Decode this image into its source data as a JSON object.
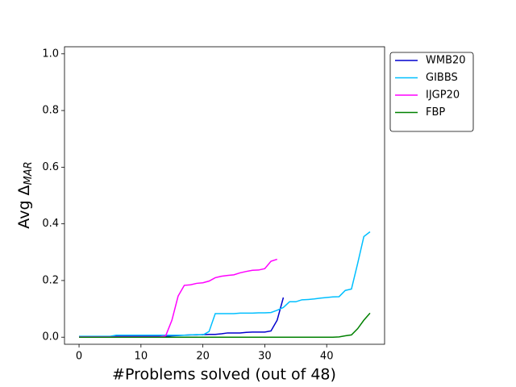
{
  "chart_data": {
    "type": "line",
    "xlabel": "#Problems solved (out of 48)",
    "ylabel": {
      "text": "Avg Δ",
      "subscript": "MAR"
    },
    "xlim": [
      -2.35,
      49.35
    ],
    "ylim": [
      -0.025,
      1.025
    ],
    "xticks": [
      0,
      10,
      20,
      30,
      40
    ],
    "yticks": [
      {
        "value": 0,
        "label": "0.0"
      },
      {
        "value": 0.2,
        "label": "0.2"
      },
      {
        "value": 0.4,
        "label": "0.4"
      },
      {
        "value": 0.6,
        "label": "0.6"
      },
      {
        "value": 0.8,
        "label": "0.8"
      },
      {
        "value": 1.0,
        "label": "1.0"
      }
    ],
    "grid": false,
    "legend": "outside-upper-right",
    "series": [
      {
        "name": "WMB20",
        "color": "#0000cd",
        "x": [
          0,
          1,
          2,
          3,
          4,
          5,
          6,
          7,
          8,
          9,
          10,
          11,
          12,
          13,
          14,
          15,
          16,
          17,
          18,
          19,
          20,
          21,
          22,
          23,
          24,
          25,
          26,
          27,
          28,
          29,
          30,
          31,
          32,
          33
        ],
        "values": [
          0.002,
          0.002,
          0.002,
          0.002,
          0.002,
          0.002,
          0.003,
          0.003,
          0.003,
          0.003,
          0.003,
          0.003,
          0.003,
          0.003,
          0.003,
          0.005,
          0.006,
          0.007,
          0.008,
          0.008,
          0.009,
          0.01,
          0.01,
          0.012,
          0.015,
          0.015,
          0.015,
          0.017,
          0.018,
          0.018,
          0.018,
          0.022,
          0.06,
          0.14
        ]
      },
      {
        "name": "GIBBS",
        "color": "#00bfff",
        "x": [
          0,
          1,
          2,
          3,
          4,
          5,
          6,
          7,
          8,
          9,
          10,
          11,
          12,
          13,
          14,
          15,
          16,
          17,
          18,
          19,
          20,
          21,
          22,
          23,
          24,
          25,
          26,
          27,
          28,
          29,
          30,
          31,
          32,
          33,
          34,
          35,
          36,
          37,
          38,
          39,
          40,
          41,
          42,
          43,
          44,
          45,
          46,
          47
        ],
        "values": [
          0.003,
          0.003,
          0.003,
          0.003,
          0.003,
          0.003,
          0.007,
          0.007,
          0.007,
          0.007,
          0.007,
          0.007,
          0.007,
          0.007,
          0.007,
          0.007,
          0.007,
          0.007,
          0.008,
          0.009,
          0.008,
          0.02,
          0.083,
          0.083,
          0.083,
          0.083,
          0.085,
          0.085,
          0.085,
          0.086,
          0.086,
          0.087,
          0.095,
          0.105,
          0.125,
          0.125,
          0.132,
          0.133,
          0.135,
          0.138,
          0.14,
          0.142,
          0.143,
          0.165,
          0.17,
          0.26,
          0.355,
          0.372
        ]
      },
      {
        "name": "IJGP20",
        "color": "#ff00ff",
        "x": [
          0,
          1,
          2,
          3,
          4,
          5,
          6,
          7,
          8,
          9,
          10,
          11,
          12,
          13,
          14,
          15,
          16,
          17,
          18,
          19,
          20,
          21,
          22,
          23,
          24,
          25,
          26,
          27,
          28,
          29,
          30,
          31,
          32
        ],
        "values": [
          0.001,
          0.001,
          0.001,
          0.001,
          0.001,
          0.001,
          0.001,
          0.001,
          0.001,
          0.001,
          0.001,
          0.001,
          0.001,
          0.001,
          0.005,
          0.06,
          0.145,
          0.183,
          0.185,
          0.19,
          0.192,
          0.198,
          0.21,
          0.215,
          0.218,
          0.22,
          0.227,
          0.232,
          0.236,
          0.237,
          0.242,
          0.268,
          0.275
        ]
      },
      {
        "name": "FBP",
        "color": "#008000",
        "x": [
          0,
          1,
          2,
          3,
          4,
          5,
          6,
          7,
          8,
          9,
          10,
          11,
          12,
          13,
          14,
          15,
          16,
          17,
          18,
          19,
          20,
          21,
          22,
          23,
          24,
          25,
          26,
          27,
          28,
          29,
          30,
          31,
          32,
          33,
          34,
          35,
          36,
          37,
          38,
          39,
          40,
          41,
          42,
          43,
          44,
          45,
          46,
          47
        ],
        "values": [
          0,
          0,
          0,
          0,
          0,
          0,
          0,
          0,
          0,
          0,
          0,
          0,
          0,
          0,
          0,
          0,
          0,
          0,
          0,
          0,
          0,
          0,
          0,
          0,
          0,
          0,
          0,
          0,
          0,
          0,
          0,
          0,
          0,
          0,
          0,
          0,
          0,
          0,
          0,
          0,
          0,
          0,
          0.001,
          0.005,
          0.008,
          0.03,
          0.06,
          0.085
        ]
      }
    ]
  }
}
